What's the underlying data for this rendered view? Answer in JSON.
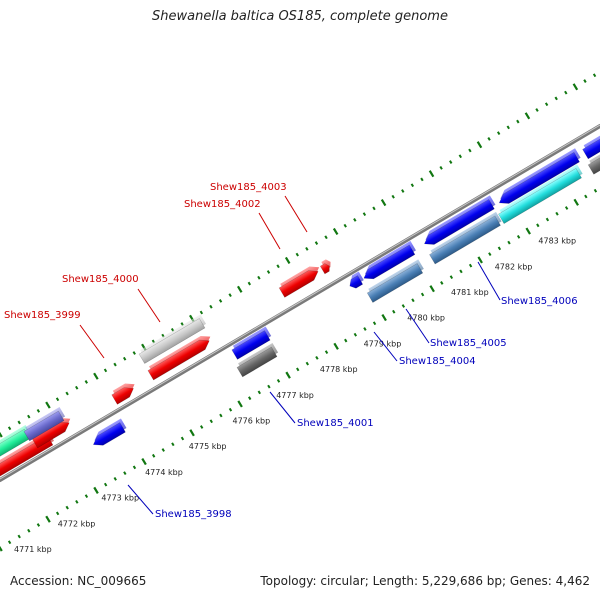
{
  "title": "Shewanella baltica OS185, complete genome",
  "footer": {
    "accession": "Accession: NC_009665",
    "summary": "Topology: circular; Length: 5,229,686 bp; Genes: 4,462"
  },
  "colors": {
    "forward_label": "#cc0000",
    "reverse_label": "#0000bb",
    "backbone": "#8a8a8a",
    "ticks": "#117711"
  },
  "scale": {
    "labels": [
      "4771 kbp",
      "4772 kbp",
      "4773 kbp",
      "4774 kbp",
      "4775 kbp",
      "4776 kbp",
      "4777 kbp",
      "4778 kbp",
      "4779 kbp",
      "4780 kbp",
      "4781 kbp",
      "4782 kbp",
      "4783 kbp"
    ]
  },
  "genes": {
    "forward_labels": [
      "Shew185_3999",
      "Shew185_4000",
      "Shew185_4002",
      "Shew185_4003"
    ],
    "reverse_labels": [
      "Shew185_3998",
      "Shew185_4001",
      "Shew185_4004",
      "Shew185_4005",
      "Shew185_4006"
    ]
  }
}
